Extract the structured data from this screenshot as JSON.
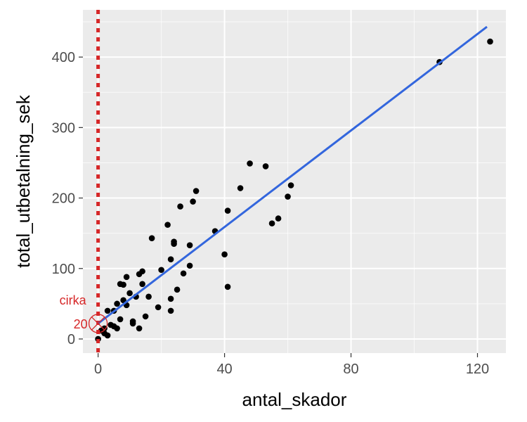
{
  "chart_data": {
    "type": "scatter",
    "title": "",
    "xlabel": "antal_skador",
    "ylabel": "total_utbetalning_sek",
    "xlim": [
      -4.8,
      129
    ],
    "ylim": [
      -20,
      467
    ],
    "x_ticks": [
      0,
      40,
      80,
      120
    ],
    "x_tick_labels": [
      "0",
      "40",
      "80",
      "120"
    ],
    "x_minor_ticks": [
      20,
      60,
      100
    ],
    "y_ticks": [
      0,
      100,
      200,
      300,
      400
    ],
    "y_tick_labels": [
      "0",
      "100",
      "200",
      "300",
      "400"
    ],
    "y_minor_ticks": [
      50,
      150,
      250,
      350,
      450
    ],
    "grid": true,
    "colors": {
      "panel": "#ebebeb",
      "grid": "#ffffff",
      "points": "#000000",
      "fit_line": "#3366dd",
      "annotation": "#d62728"
    },
    "points": [
      {
        "x": 0,
        "y": 0
      },
      {
        "x": 1,
        "y": 12
      },
      {
        "x": 2,
        "y": 8
      },
      {
        "x": 2,
        "y": 15
      },
      {
        "x": 3,
        "y": 5
      },
      {
        "x": 3,
        "y": 40
      },
      {
        "x": 4,
        "y": 20
      },
      {
        "x": 5,
        "y": 40
      },
      {
        "x": 5,
        "y": 18
      },
      {
        "x": 6,
        "y": 15
      },
      {
        "x": 6,
        "y": 50
      },
      {
        "x": 7,
        "y": 28
      },
      {
        "x": 7,
        "y": 78
      },
      {
        "x": 8,
        "y": 77
      },
      {
        "x": 8,
        "y": 55
      },
      {
        "x": 9,
        "y": 48
      },
      {
        "x": 9,
        "y": 88
      },
      {
        "x": 10,
        "y": 65
      },
      {
        "x": 11,
        "y": 22
      },
      {
        "x": 11,
        "y": 25
      },
      {
        "x": 12,
        "y": 60
      },
      {
        "x": 13,
        "y": 92
      },
      {
        "x": 13,
        "y": 15
      },
      {
        "x": 14,
        "y": 78
      },
      {
        "x": 14,
        "y": 96
      },
      {
        "x": 15,
        "y": 32
      },
      {
        "x": 16,
        "y": 60
      },
      {
        "x": 17,
        "y": 143
      },
      {
        "x": 19,
        "y": 45
      },
      {
        "x": 20,
        "y": 98
      },
      {
        "x": 22,
        "y": 162
      },
      {
        "x": 23,
        "y": 113
      },
      {
        "x": 23,
        "y": 40
      },
      {
        "x": 23,
        "y": 57
      },
      {
        "x": 24,
        "y": 138
      },
      {
        "x": 24,
        "y": 135
      },
      {
        "x": 25,
        "y": 70
      },
      {
        "x": 26,
        "y": 188
      },
      {
        "x": 27,
        "y": 93
      },
      {
        "x": 29,
        "y": 133
      },
      {
        "x": 29,
        "y": 104
      },
      {
        "x": 30,
        "y": 195
      },
      {
        "x": 31,
        "y": 210
      },
      {
        "x": 37,
        "y": 153
      },
      {
        "x": 40,
        "y": 120
      },
      {
        "x": 41,
        "y": 74
      },
      {
        "x": 41,
        "y": 182
      },
      {
        "x": 45,
        "y": 214
      },
      {
        "x": 48,
        "y": 249
      },
      {
        "x": 53,
        "y": 245
      },
      {
        "x": 55,
        "y": 164
      },
      {
        "x": 57,
        "y": 171
      },
      {
        "x": 60,
        "y": 202
      },
      {
        "x": 61,
        "y": 218
      },
      {
        "x": 108,
        "y": 393
      },
      {
        "x": 124,
        "y": 422
      }
    ],
    "fit_line": {
      "x": [
        0,
        123
      ],
      "y": [
        22,
        443
      ]
    },
    "reference_line": {
      "x": 0
    },
    "annotation": {
      "lines": [
        "cirka",
        "20"
      ],
      "marker_at": {
        "x": 0,
        "y": 22
      }
    }
  }
}
